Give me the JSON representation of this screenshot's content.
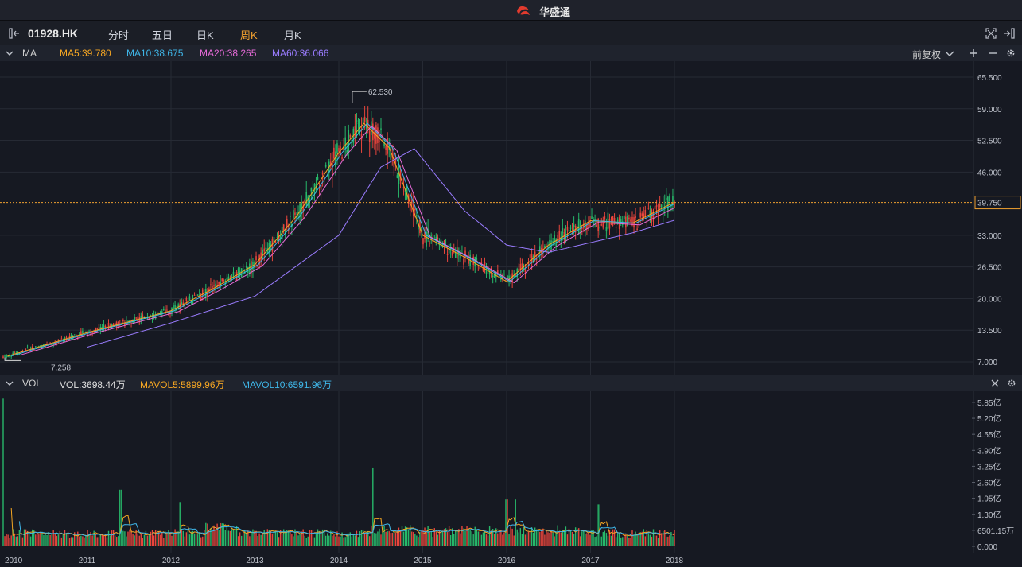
{
  "app": {
    "title": "华盛通"
  },
  "toolbar": {
    "symbol": "01928.HK",
    "tabs": [
      {
        "label": "分时",
        "active": false
      },
      {
        "label": "五日",
        "active": false
      },
      {
        "label": "日K",
        "active": false
      },
      {
        "label": "周K",
        "active": true
      },
      {
        "label": "月K",
        "active": false
      }
    ]
  },
  "ma_bar": {
    "label": "MA",
    "ma5": "MA5:39.780",
    "ma10": "MA10:38.675",
    "ma20": "MA20:38.265",
    "ma60": "MA60:36.066",
    "adjust": "前复权"
  },
  "vol_bar": {
    "label": "VOL",
    "vol": "VOL:3698.44万",
    "mavol5": "MAVOL5:5899.96万",
    "mavol10": "MAVOL10:6591.96万"
  },
  "colors": {
    "ma5": "#f5a623",
    "ma10": "#3fb6e8",
    "ma20": "#e66ad8",
    "ma60": "#9a7cff",
    "up": "#e8453c",
    "down": "#27b86a",
    "price_line": "#f0a030"
  },
  "chart_data": [
    {
      "type": "candlestick",
      "title": "",
      "period": "weekly",
      "ylim": [
        7.0,
        65.5
      ],
      "y_ticks": [
        "65.500",
        "59.000",
        "52.500",
        "46.000",
        "39.750",
        "33.000",
        "26.500",
        "20.000",
        "13.500",
        "7.000"
      ],
      "x_ticks": [
        "2010",
        "2011",
        "2012",
        "2013",
        "2014",
        "2015",
        "2016",
        "2017",
        "2018"
      ],
      "current_price": "39.750",
      "high_marker": "62.530",
      "low_marker": "7.258",
      "series": [
        {
          "name": "MA5",
          "x": [
            2010.0,
            2011.0,
            2012.0,
            2012.5,
            2013.0,
            2013.5,
            2014.0,
            2014.3,
            2014.6,
            2015.0,
            2015.5,
            2016.0,
            2016.5,
            2017.0,
            2017.5,
            2018.0
          ],
          "values": [
            7.9,
            13.0,
            17.5,
            22.0,
            27.0,
            37.0,
            50.0,
            56.0,
            51.0,
            33.0,
            28.5,
            23.5,
            31.0,
            36.0,
            35.5,
            39.8
          ]
        },
        {
          "name": "MA60",
          "x": [
            2011.0,
            2012.0,
            2013.0,
            2014.0,
            2014.5,
            2014.9,
            2015.5,
            2016.0,
            2016.5,
            2017.0,
            2017.5,
            2018.0
          ],
          "values": [
            10.0,
            15.0,
            20.5,
            33.0,
            47.0,
            50.8,
            38.0,
            31.0,
            29.5,
            31.5,
            33.5,
            36.1
          ]
        }
      ]
    },
    {
      "type": "bar",
      "title": "",
      "ylim": [
        0,
        6.3
      ],
      "y_ticks": [
        "5.85亿",
        "5.20亿",
        "4.55亿",
        "3.90亿",
        "3.25亿",
        "2.60亿",
        "1.95亿",
        "1.30亿",
        "6501.15万",
        "0.000"
      ],
      "x_ticks": [
        "2010",
        "2011",
        "2012",
        "2013",
        "2014",
        "2015",
        "2016",
        "2017",
        "2018"
      ],
      "series": [
        {
          "name": "VOL",
          "x": [
            2010.0,
            2011.4,
            2012.1,
            2014.4,
            2016.0,
            2016.1,
            2017.1
          ],
          "values": [
            6.0,
            2.3,
            1.8,
            3.2,
            1.9,
            1.9,
            1.7
          ]
        }
      ]
    }
  ]
}
